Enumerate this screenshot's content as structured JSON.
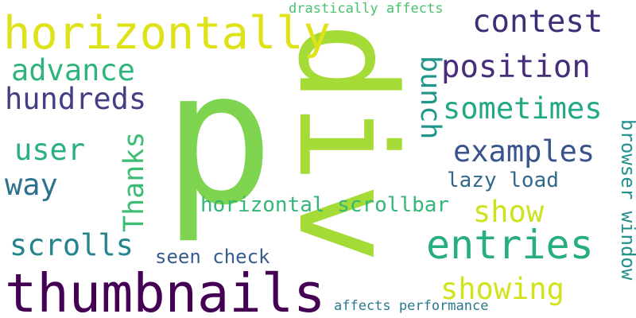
{
  "words": [
    {
      "text": "p",
      "color": "#7ed34f"
    },
    {
      "text": "div",
      "color": "#a5db36"
    },
    {
      "text": "horizontally",
      "color": "#dde318"
    },
    {
      "text": "thumbnails",
      "color": "#440154"
    },
    {
      "text": "entries",
      "color": "#26ad81"
    },
    {
      "text": "position",
      "color": "#472d7b"
    },
    {
      "text": "contest",
      "color": "#3f2d77"
    },
    {
      "text": "advance",
      "color": "#2fb47c"
    },
    {
      "text": "hundreds",
      "color": "#433e85"
    },
    {
      "text": "sometimes",
      "color": "#22a884"
    },
    {
      "text": "examples",
      "color": "#3a538b"
    },
    {
      "text": "user",
      "color": "#2ab07f"
    },
    {
      "text": "Thanks",
      "color": "#3dbc74"
    },
    {
      "text": "bunch",
      "color": "#1f958b"
    },
    {
      "text": "way",
      "color": "#2c728e"
    },
    {
      "text": "show",
      "color": "#cde11d"
    },
    {
      "text": "scrolls",
      "color": "#25858e"
    },
    {
      "text": "showing",
      "color": "#d2e21b"
    },
    {
      "text": "horizontal scrollbar",
      "color": "#35b779"
    },
    {
      "text": "lazy load",
      "color": "#31688e"
    },
    {
      "text": "seen check",
      "color": "#365c8d"
    },
    {
      "text": "browser window",
      "color": "#21918c"
    },
    {
      "text": "drastically affects",
      "color": "#4ac16d"
    },
    {
      "text": "affects performance",
      "color": "#2a788e"
    }
  ]
}
